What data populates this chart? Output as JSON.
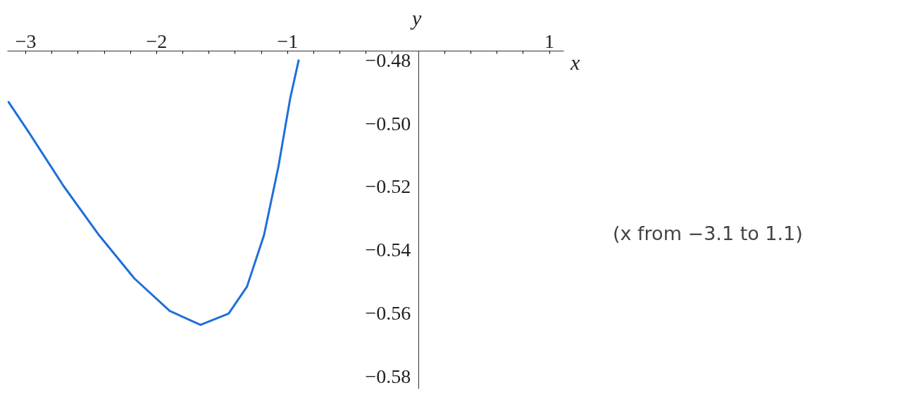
{
  "chart_data": {
    "type": "line",
    "xlabel": "x",
    "ylabel": "y",
    "annotations": [
      "(x from −3.1 to 1.1)"
    ],
    "x": [
      -3.135,
      -2.98,
      -2.71,
      -2.44,
      -2.17,
      -1.9,
      -1.665,
      -1.45,
      -1.31,
      -1.18,
      -1.07,
      -0.98,
      -0.914
    ],
    "series": [
      {
        "color": "#1e6fd9",
        "values": [
          -0.4929,
          -0.5025,
          -0.5198,
          -0.5353,
          -0.549,
          -0.5593,
          -0.5637,
          -0.5601,
          -0.5516,
          -0.5353,
          -0.5136,
          -0.492,
          -0.4797
        ]
      }
    ],
    "xlim": [
      -3.14,
      1.11
    ],
    "ylim": [
      -0.584,
      -0.477
    ],
    "xticks": [
      {
        "value": -3,
        "label": "−3"
      },
      {
        "value": -2,
        "label": "−2"
      },
      {
        "value": -1,
        "label": "−1"
      },
      1,
      {
        "value": -2.8,
        "label": null
      },
      {
        "value": -2.6,
        "label": null
      },
      {
        "value": -2.4,
        "label": null
      },
      {
        "value": -2.2,
        "label": null
      },
      {
        "value": -1.8,
        "label": null
      },
      {
        "value": -1.6,
        "label": null
      },
      {
        "value": -1.4,
        "label": null
      },
      {
        "value": -1.2,
        "label": null
      },
      {
        "value": -0.8,
        "label": null
      },
      {
        "value": -0.6,
        "label": null
      },
      {
        "value": -0.4,
        "label": null
      },
      {
        "value": -0.2,
        "label": null
      },
      {
        "value": 0.2,
        "label": null
      },
      {
        "value": 0.4,
        "label": null
      },
      {
        "value": 0.6,
        "label": null
      },
      {
        "value": 0.8,
        "label": null
      }
    ],
    "yticks": [
      {
        "value": -0.48,
        "label": "−0.48"
      },
      {
        "value": -0.5,
        "label": "−0.50"
      },
      {
        "value": -0.52,
        "label": "−0.52"
      },
      {
        "value": -0.54,
        "label": "−0.54"
      },
      {
        "value": -0.56,
        "label": "−0.56"
      },
      {
        "value": -0.58,
        "label": "−0.58"
      }
    ],
    "grid": false,
    "marker": "none",
    "line_style": "solid"
  }
}
